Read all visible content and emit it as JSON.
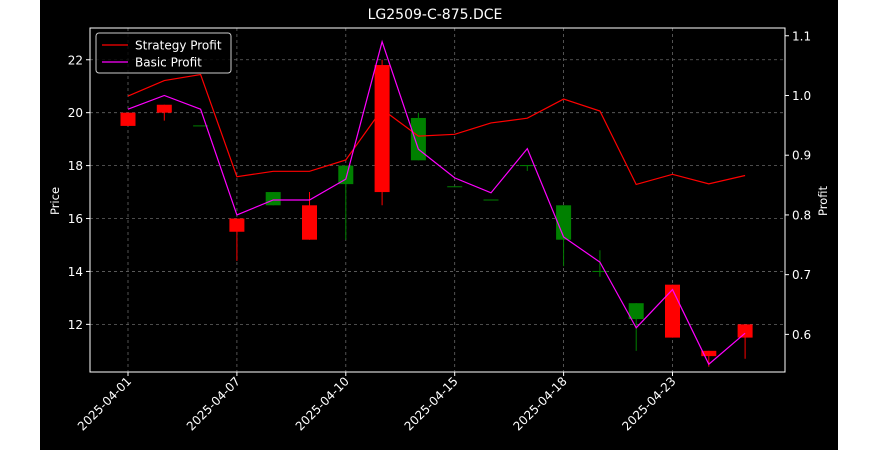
{
  "chart_data": {
    "type": "candlestick",
    "title": "LG2509-C-875.DCE",
    "xlabel": "",
    "ylabel": "Price",
    "y2label": "Profit",
    "ylim": [
      10.2,
      23.2
    ],
    "y2lim": [
      0.537,
      1.113
    ],
    "yticks": [
      12,
      14,
      16,
      18,
      20,
      22
    ],
    "y2ticks": [
      0.6,
      0.7,
      0.8,
      0.9,
      1.0,
      1.1
    ],
    "y2tick_labels": [
      "0.6",
      "0.7",
      "0.8",
      "0.9",
      "1.0",
      "1.1"
    ],
    "xticks": [
      "2025-04-01",
      "2025-04-07",
      "2025-04-10",
      "2025-04-15",
      "2025-04-18",
      "2025-04-23"
    ],
    "xtick_index": [
      0,
      3,
      6,
      9,
      12,
      15
    ],
    "grid": true,
    "legend_position": "top-left",
    "up_color": "#008000",
    "down_color": "#ff0000",
    "candles": [
      {
        "open": 20.0,
        "high": 20.0,
        "low": 19.5,
        "close": 19.5
      },
      {
        "open": 20.3,
        "high": 20.3,
        "low": 19.7,
        "close": 20.0
      },
      {
        "open": 19.5,
        "high": 19.5,
        "low": 19.5,
        "close": 19.5
      },
      {
        "open": 16.0,
        "high": 16.0,
        "low": 14.4,
        "close": 15.5
      },
      {
        "open": 16.5,
        "high": 17.0,
        "low": 16.5,
        "close": 17.0
      },
      {
        "open": 16.5,
        "high": 17.0,
        "low": 15.2,
        "close": 15.2
      },
      {
        "open": 17.3,
        "high": 18.0,
        "low": 15.2,
        "close": 18.0
      },
      {
        "open": 21.8,
        "high": 22.0,
        "low": 16.5,
        "close": 17.0
      },
      {
        "open": 18.2,
        "high": 20.0,
        "low": 18.2,
        "close": 19.8
      },
      {
        "open": 17.2,
        "high": 17.2,
        "low": 17.2,
        "close": 17.2
      },
      {
        "open": 16.7,
        "high": 16.7,
        "low": 16.7,
        "close": 16.7
      },
      {
        "open": 18.0,
        "high": 18.0,
        "low": 17.8,
        "close": 18.0
      },
      {
        "open": 15.2,
        "high": 16.5,
        "low": 14.2,
        "close": 16.5
      },
      {
        "open": 14.0,
        "high": 14.8,
        "low": 13.8,
        "close": 14.0
      },
      {
        "open": 12.2,
        "high": 12.8,
        "low": 11.0,
        "close": 12.8
      },
      {
        "open": 13.5,
        "high": 13.5,
        "low": 11.5,
        "close": 11.5
      },
      {
        "open": 11.0,
        "high": 11.0,
        "low": 10.4,
        "close": 10.8
      },
      {
        "open": 12.0,
        "high": 12.0,
        "low": 10.7,
        "close": 11.5
      }
    ],
    "series": [
      {
        "name": "Strategy Profit",
        "color": "#ff0000",
        "axis": "right",
        "values": [
          0.999,
          1.025,
          1.035,
          0.864,
          0.873,
          0.873,
          0.892,
          0.977,
          0.932,
          0.935,
          0.954,
          0.962,
          0.994,
          0.974,
          0.851,
          0.868,
          0.852,
          0.866
        ]
      },
      {
        "name": "Basic Profit",
        "color": "#ff00ff",
        "axis": "right",
        "values": [
          0.977,
          1.0,
          0.977,
          0.8,
          0.825,
          0.825,
          0.86,
          1.09,
          0.91,
          0.862,
          0.837,
          0.911,
          0.763,
          0.721,
          0.611,
          0.675,
          0.55,
          0.602
        ]
      }
    ]
  }
}
